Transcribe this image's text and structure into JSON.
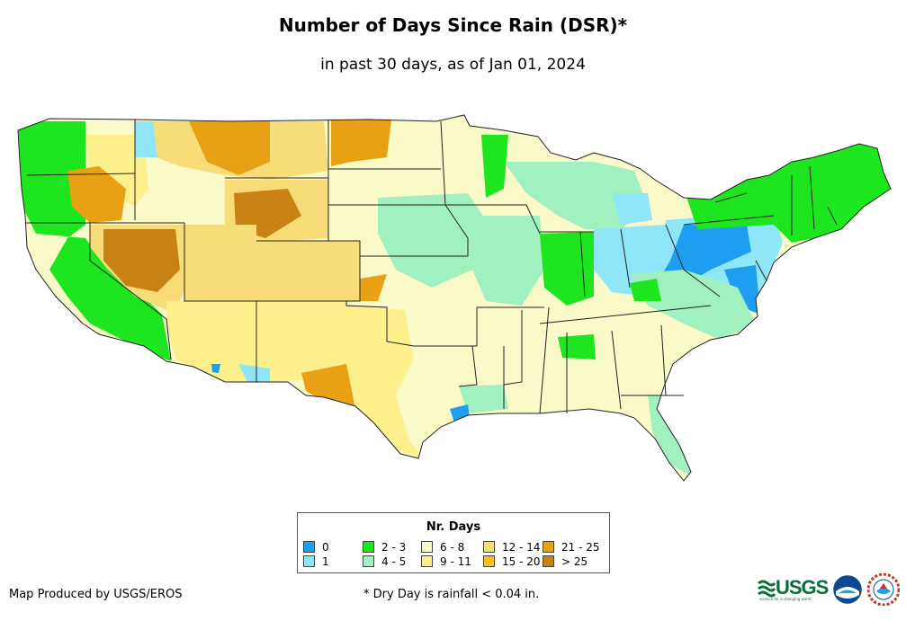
{
  "title": "Number of Days Since Rain (DSR)*",
  "subtitle": "in past 30 days, as of Jan 01, 2024",
  "legend": {
    "title": "Nr. Days",
    "items": [
      {
        "label": "0",
        "color": "#1e9ef0"
      },
      {
        "label": "1",
        "color": "#8ee6f8"
      },
      {
        "label": "2 - 3",
        "color": "#1ee61e"
      },
      {
        "label": "4 - 5",
        "color": "#a0f0c0"
      },
      {
        "label": "6 - 8",
        "color": "#fafac8"
      },
      {
        "label": "9 - 11",
        "color": "#fbf08c"
      },
      {
        "label": "12 - 14",
        "color": "#f8dc78"
      },
      {
        "label": "15 - 20",
        "color": "#f4c01e"
      },
      {
        "label": "21 - 25",
        "color": "#e8a014"
      },
      {
        "label": "> 25",
        "color": "#c88214"
      }
    ]
  },
  "footer": {
    "credit": "Map Produced by USGS/EROS",
    "footnote": "* Dry Day is rainfall < 0.04 in."
  },
  "logos": {
    "usgs_text": "USGS",
    "usgs_tagline": "science for a changing world",
    "usgs": "usgs-logo",
    "noaa": "noaa-logo",
    "nws": "nws-logo"
  }
}
